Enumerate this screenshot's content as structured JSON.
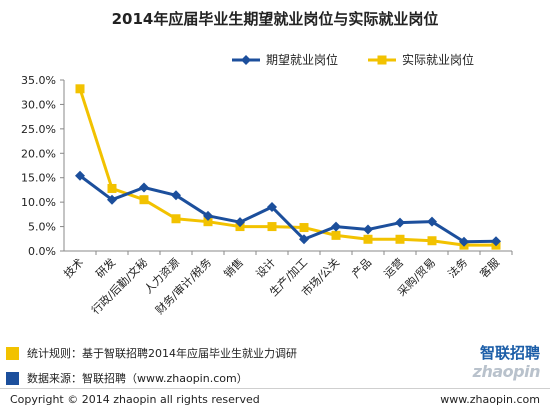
{
  "title": "2014年应届毕业生期望就业岗位与实际就业岗位",
  "chart_data": {
    "type": "line",
    "categories": [
      "技术",
      "研发",
      "行政/后勤/文秘",
      "人力资源",
      "财务/审计/税务",
      "销售",
      "设计",
      "生产/加工",
      "市场/公关",
      "产品",
      "运营",
      "采购/贸易",
      "法务",
      "客服"
    ],
    "series": [
      {
        "name": "期望就业岗位",
        "color": "#1c4f9c",
        "marker": "diamond",
        "values": [
          15.4,
          10.5,
          13.0,
          11.4,
          7.2,
          5.9,
          9.0,
          2.4,
          5.0,
          4.4,
          5.8,
          6.0,
          1.9,
          2.0
        ]
      },
      {
        "name": "实际就业岗位",
        "color": "#f2c200",
        "marker": "square",
        "values": [
          33.2,
          12.8,
          10.5,
          6.6,
          6.0,
          5.0,
          5.0,
          4.8,
          3.2,
          2.4,
          2.4,
          2.1,
          1.2,
          1.2
        ]
      }
    ],
    "yticks": [
      "0.0%",
      "5.0%",
      "10.0%",
      "15.0%",
      "20.0%",
      "25.0%",
      "30.0%",
      "35.0%"
    ],
    "ylim": [
      0,
      35
    ],
    "grid": false,
    "legend_position": "top-right"
  },
  "notes": [
    {
      "text": "统计规则：基于智联招聘2014年应届毕业生就业力调研",
      "color": "#f2c200"
    },
    {
      "text": "数据来源：智联招聘（www.zhaopin.com）",
      "color": "#1c4f9c"
    }
  ],
  "copyright": "Copyright  ©  2014 zhaopin all rights reserved",
  "website": "www.zhaopin.com",
  "brand": {
    "name": "智联招聘",
    "latin": "zhaopin"
  }
}
